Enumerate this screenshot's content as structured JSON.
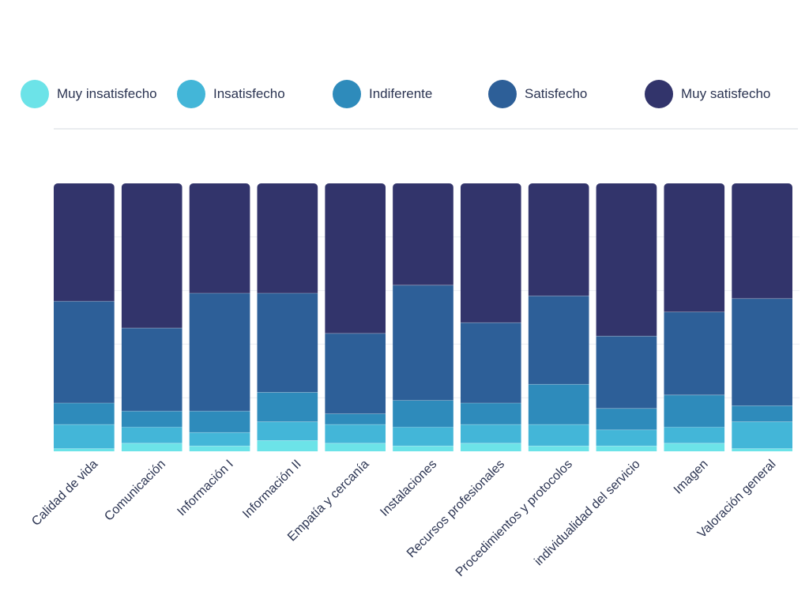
{
  "chart_data": {
    "type": "bar",
    "stacked": true,
    "normalized": true,
    "ylim": [
      0,
      100
    ],
    "grid": true,
    "legend_position": "top",
    "categories": [
      "Calidad de vida",
      "Comunicación",
      "Información I",
      "Información II",
      "Empatía y cercanía",
      "Instalaciones",
      "Recursos profesionales",
      "Procedimientos y protocolos",
      "individualidad del servicio",
      "Imagen",
      "Valoración general"
    ],
    "series": [
      {
        "name": "Muy insatisfecho",
        "color": "#6ce3e8",
        "values": [
          1,
          3,
          2,
          4,
          3,
          2,
          3,
          2,
          2,
          3,
          1
        ]
      },
      {
        "name": "Insatisfecho",
        "color": "#43b6d8",
        "values": [
          9,
          6,
          5,
          7,
          7,
          7,
          7,
          8,
          6,
          6,
          10
        ]
      },
      {
        "name": "Indiferente",
        "color": "#2e8bbb",
        "values": [
          8,
          6,
          8,
          11,
          4,
          10,
          8,
          15,
          8,
          12,
          6
        ]
      },
      {
        "name": "Satisfecho",
        "color": "#2d5f98",
        "values": [
          38,
          31,
          44,
          37,
          30,
          43,
          30,
          33,
          27,
          31,
          40
        ]
      },
      {
        "name": "Muy satisfecho",
        "color": "#32346b",
        "values": [
          44,
          54,
          41,
          41,
          56,
          38,
          52,
          42,
          57,
          48,
          43
        ]
      }
    ]
  }
}
